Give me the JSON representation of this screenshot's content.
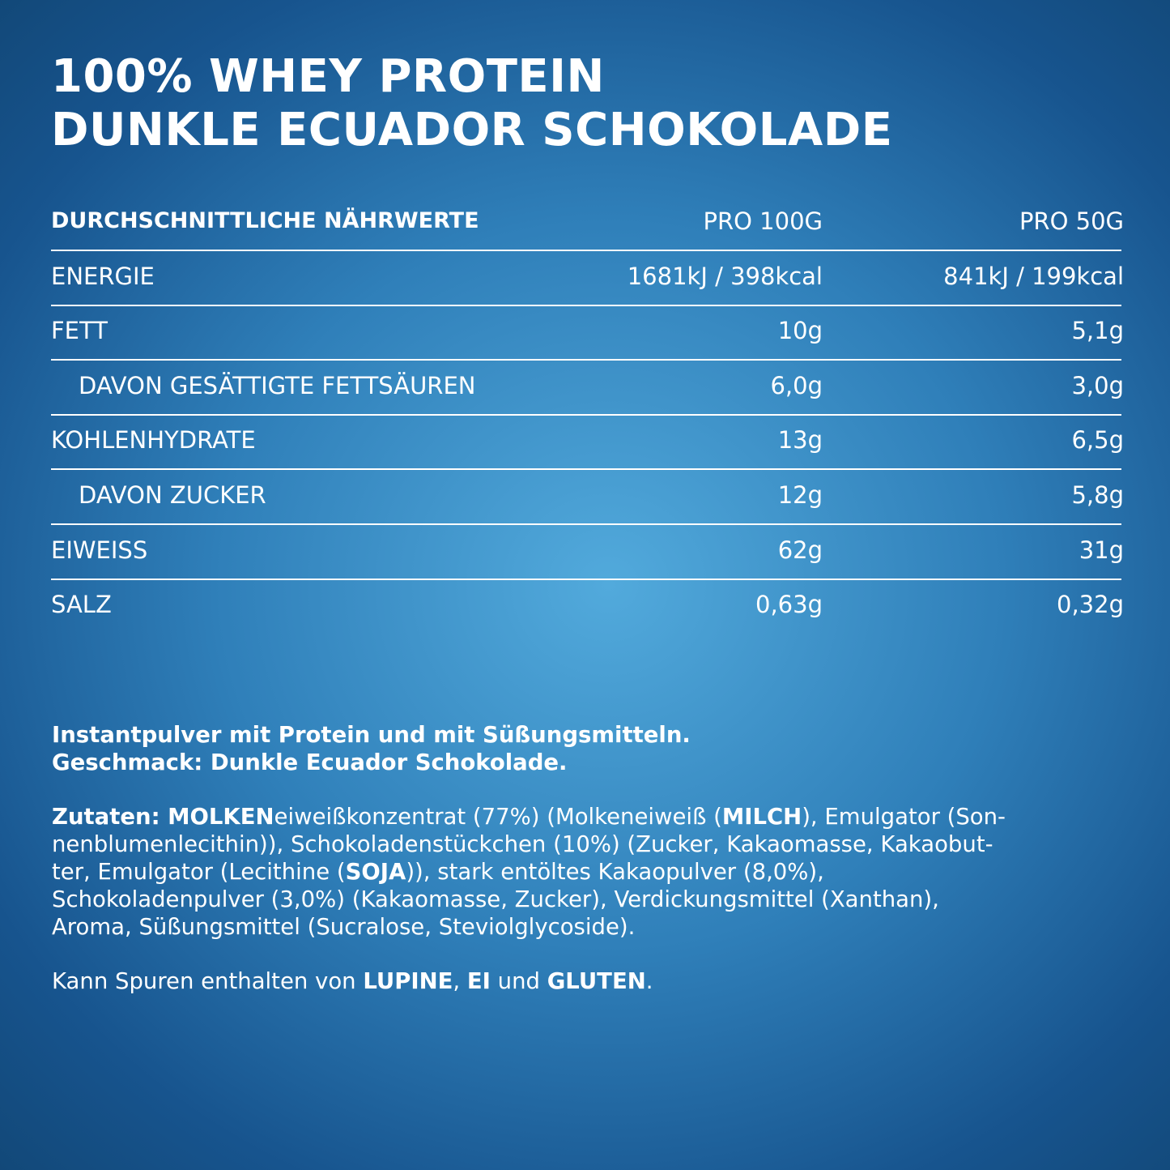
{
  "title": {
    "lines": [
      "100% WHEY PROTEIN",
      "DUNKLE ECUADOR SCHOKOLADE"
    ]
  },
  "table": {
    "header": [
      "DURCHSCHNITTLICHE NÄHRWERTE",
      "PRO 100G",
      "PRO 50G"
    ],
    "rows": [
      {
        "label": "ENERGIE",
        "indent": false,
        "per100": "1681kJ / 398kcal",
        "per50": "841kJ / 199kcal"
      },
      {
        "label": "FETT",
        "indent": false,
        "per100": "10g",
        "per50": "5,1g"
      },
      {
        "label": "DAVON GESÄTTIGTE  FETTSÄUREN",
        "indent": true,
        "per100": "6,0g",
        "per50": "3,0g"
      },
      {
        "label": "KOHLENHYDRATE",
        "indent": false,
        "per100": "13g",
        "per50": "6,5g"
      },
      {
        "label": "DAVON ZUCKER",
        "indent": true,
        "per100": "12g",
        "per50": "5,8g"
      },
      {
        "label": "EIWEISS",
        "indent": false,
        "per100": "62g",
        "per50": "31g"
      },
      {
        "label": "SALZ",
        "indent": false,
        "per100": "0,63g",
        "per50": "0,32g"
      }
    ]
  },
  "intro": {
    "lines": [
      "Instantpulver mit Protein und mit Süßungsmitteln.",
      "Geschmack: Dunkle Ecuador Schokolade."
    ]
  },
  "ingredients": {
    "lines": [
      {
        "segments": [
          {
            "text": "Zutaten: MOLKEN",
            "bold": true
          },
          {
            "text": "eiweißkonzentrat (77%) (Molkeneiweiß (",
            "bold": false
          },
          {
            "text": "MILCH",
            "bold": true
          },
          {
            "text": "), Emulgator (Son-",
            "bold": false
          }
        ]
      },
      {
        "segments": [
          {
            "text": "nenblumenlecithin)), Schokoladenstückchen (10%) (Zucker, Kakaomasse, Kakaobut-",
            "bold": false
          }
        ]
      },
      {
        "segments": [
          {
            "text": "ter, Emulgator (Lecithine (",
            "bold": false
          },
          {
            "text": "SOJA",
            "bold": true
          },
          {
            "text": ")), stark entöltes Kakaopulver (8,0%),",
            "bold": false
          }
        ]
      },
      {
        "segments": [
          {
            "text": "Schokoladenpulver (3,0%) (Kakaomasse, Zucker), Verdickungsmittel (Xanthan),",
            "bold": false
          }
        ]
      },
      {
        "segments": [
          {
            "text": "Aroma, Süßungsmittel (Sucralose, Steviolglycoside).",
            "bold": false
          }
        ]
      }
    ]
  },
  "traces": {
    "segments": [
      {
        "text": "Kann Spuren enthalten von ",
        "bold": false
      },
      {
        "text": "LUPINE",
        "bold": true
      },
      {
        "text": ", ",
        "bold": false
      },
      {
        "text": "EI",
        "bold": true
      },
      {
        "text": " und ",
        "bold": false
      },
      {
        "text": "GLUTEN",
        "bold": true
      },
      {
        "text": ".",
        "bold": false
      }
    ]
  }
}
